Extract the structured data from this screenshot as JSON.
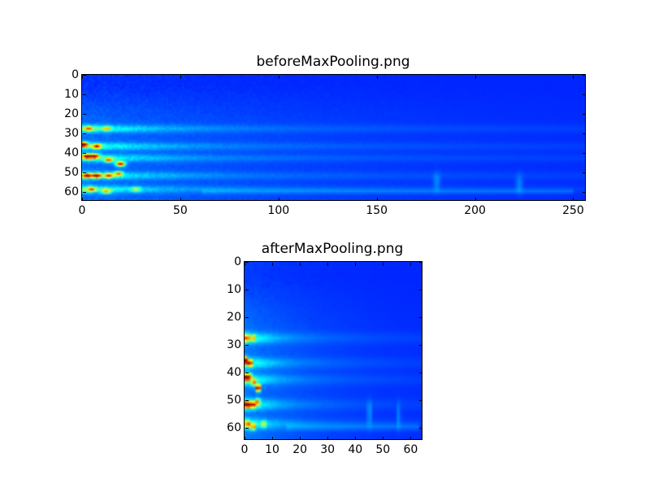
{
  "chart_data": [
    {
      "type": "heatmap",
      "title": "beforeMaxPooling.png",
      "colormap": "jet",
      "xlim": [
        0,
        256
      ],
      "ylim": [
        64,
        0
      ],
      "xticks": [
        "0",
        "50",
        "100",
        "150",
        "200",
        "250"
      ],
      "yticks": [
        "0",
        "10",
        "20",
        "30",
        "40",
        "50",
        "60"
      ],
      "peaks": [
        [
          0,
          35,
          1.0
        ],
        [
          7,
          36,
          0.7
        ],
        [
          2,
          41,
          0.85
        ],
        [
          6,
          41,
          0.75
        ],
        [
          19,
          45,
          0.95
        ],
        [
          13,
          43,
          0.6
        ],
        [
          2,
          51,
          0.8
        ],
        [
          7,
          51,
          0.85
        ],
        [
          13,
          51,
          0.65
        ],
        [
          18,
          50,
          0.6
        ],
        [
          4,
          58,
          0.5
        ],
        [
          12,
          59,
          0.5
        ],
        [
          3,
          27,
          0.5
        ],
        [
          12,
          27,
          0.4
        ],
        [
          27,
          58,
          0.35
        ]
      ],
      "ridges_y": [
        27,
        36,
        42,
        51,
        58
      ]
    },
    {
      "type": "heatmap",
      "title": "afterMaxPooling.png",
      "colormap": "jet",
      "xlim": [
        0,
        64
      ],
      "ylim": [
        64,
        0
      ],
      "xticks": [
        "0",
        "10",
        "20",
        "30",
        "40",
        "50",
        "60"
      ],
      "yticks": [
        "0",
        "10",
        "20",
        "30",
        "40",
        "50",
        "60"
      ]
    }
  ]
}
